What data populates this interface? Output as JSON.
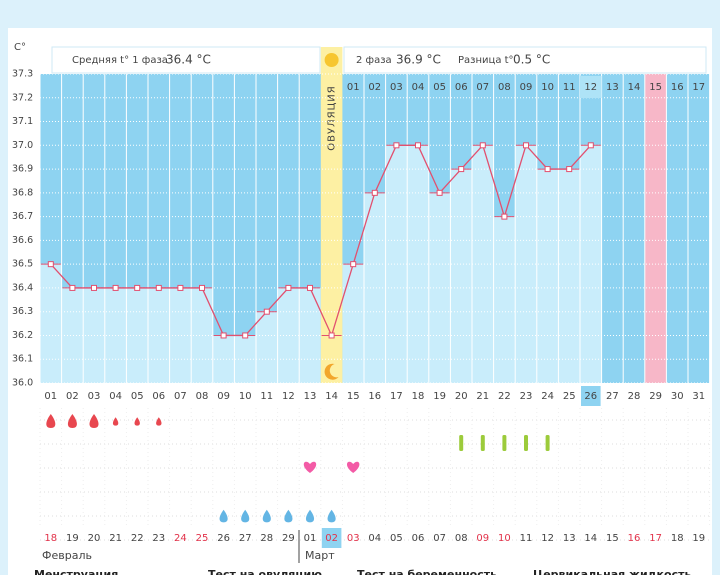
{
  "chart_data": {
    "type": "line",
    "y_unit": "C°",
    "phase1_label": "Средняя t° 1 фаза",
    "phase1_avg": "36.4 °C",
    "phase2_label": "2 фаза",
    "phase2_avg": "36.9 °C",
    "diff_label": "Разница t°",
    "diff_value": "0.5 °C",
    "ovulation_label": "ОВУЛЯЦИЯ",
    "ovulation_day": "14",
    "highlight_day": "29",
    "today": "26",
    "ylim": [
      36,
      37.3
    ],
    "yticks": [
      {
        "value": 36,
        "label": "36.0"
      },
      36.1,
      36.2,
      36.3,
      36.4,
      36.5,
      36.6,
      36.7,
      36.8,
      36.9,
      {
        "value": 37,
        "label": "37.0"
      },
      37.1,
      37.2,
      37.3
    ],
    "grid": true,
    "color": "#e2506f",
    "bar_color": "#c9edfb",
    "background_color": "#8ed3f1",
    "categories": [
      "01",
      "02",
      "03",
      "04",
      "05",
      "06",
      "07",
      "08",
      "09",
      "10",
      "11",
      "12",
      "13",
      "14",
      "15",
      "16",
      "17",
      "18",
      "19",
      "20",
      "21",
      "22",
      "23",
      "24",
      "25",
      "26",
      "27",
      "28",
      "29",
      "30",
      "31"
    ],
    "values": [
      36.5,
      36.4,
      36.4,
      36.4,
      36.4,
      36.4,
      36.4,
      36.4,
      36.2,
      36.2,
      36.3,
      36.4,
      36.4,
      36.2,
      36.5,
      36.8,
      37.0,
      37.0,
      36.8,
      36.9,
      37.0,
      36.7,
      37.0,
      36.9,
      36.9,
      37.0,
      null,
      null,
      null,
      null,
      null
    ],
    "phase2_days": [
      "01",
      "02",
      "03",
      "04",
      "05",
      "06",
      "07",
      "08",
      "09",
      "10",
      "11",
      "12",
      "13",
      "14",
      "15",
      "16",
      "17"
    ],
    "dates": [
      {
        "text": "18",
        "red": true
      },
      {
        "text": "19",
        "red": false
      },
      {
        "text": "20",
        "red": false
      },
      {
        "text": "21",
        "red": false
      },
      {
        "text": "22",
        "red": false
      },
      {
        "text": "23",
        "red": false
      },
      {
        "text": "24",
        "red": true
      },
      {
        "text": "25",
        "red": true
      },
      {
        "text": "26",
        "red": false
      },
      {
        "text": "27",
        "red": false
      },
      {
        "text": "28",
        "red": false
      },
      {
        "text": "29",
        "red": false
      },
      {
        "text": "01",
        "red": false
      },
      {
        "text": "02",
        "red": true
      },
      {
        "text": "03",
        "red": true
      },
      {
        "text": "04",
        "red": false
      },
      {
        "text": "05",
        "red": false
      },
      {
        "text": "06",
        "red": false
      },
      {
        "text": "07",
        "red": false
      },
      {
        "text": "08",
        "red": false
      },
      {
        "text": "09",
        "red": true
      },
      {
        "text": "10",
        "red": true
      },
      {
        "text": "11",
        "red": false
      },
      {
        "text": "12",
        "red": false
      },
      {
        "text": "13",
        "red": false
      },
      {
        "text": "14",
        "red": false
      },
      {
        "text": "15",
        "red": false
      },
      {
        "text": "16",
        "red": true
      },
      {
        "text": "17",
        "red": true
      },
      {
        "text": "18",
        "red": false
      },
      {
        "text": "19",
        "red": false
      }
    ],
    "months": [
      "Февраль",
      "Март"
    ],
    "menstruation": {
      "days": [
        "01",
        "02",
        "03",
        "04",
        "05",
        "06"
      ],
      "sizes": [
        "large",
        "large",
        "large",
        "small",
        "small",
        "small"
      ]
    },
    "intercourse": [
      "13",
      "15"
    ],
    "ovulation_tests": [
      "20",
      "21",
      "22",
      "23",
      "24"
    ],
    "cervical_fluid": [
      "09",
      "10",
      "11",
      "12",
      "13",
      "14"
    ],
    "legend": [
      "Менструация",
      "Тест на овуляцию",
      "Тест на беременность",
      "Цервикальная жидкость"
    ]
  }
}
